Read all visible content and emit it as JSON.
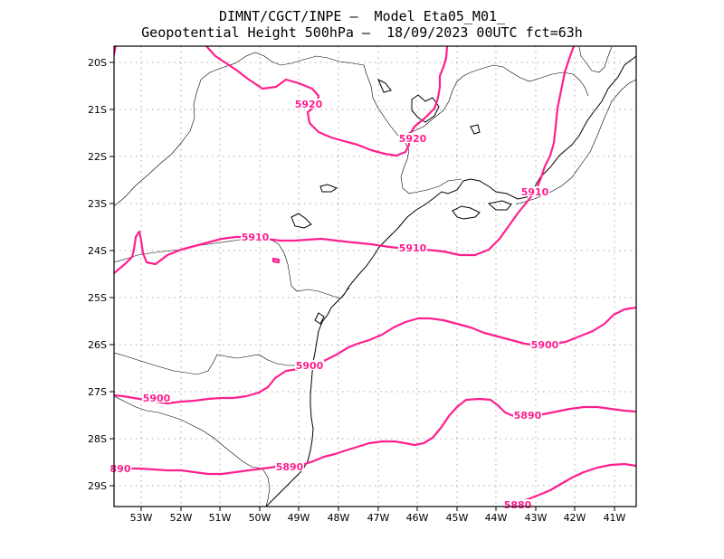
{
  "header": {
    "title_line1": "DIMNT/CGCT/INPE –  Model Eta05_M01_",
    "title_line2": "Geopotential Height 500hPa –  18/09/2023 00UTC fct=63h"
  },
  "axes": {
    "lon_labels": [
      "53W",
      "52W",
      "51W",
      "50W",
      "49W",
      "48W",
      "47W",
      "46W",
      "45W",
      "44W",
      "43W",
      "42W",
      "41W"
    ],
    "lat_labels": [
      "20S",
      "21S",
      "22S",
      "23S",
      "24S",
      "25S",
      "26S",
      "27S",
      "28S",
      "29S"
    ]
  },
  "contours": {
    "line_color": "#ff1f8f",
    "labels": [
      {
        "id": "c5920a",
        "text": "5920"
      },
      {
        "id": "c5920b",
        "text": "5920"
      },
      {
        "id": "c5910a",
        "text": "5910"
      },
      {
        "id": "c5910b",
        "text": "5910"
      },
      {
        "id": "c5910c",
        "text": "5910"
      },
      {
        "id": "c5900a",
        "text": "5900"
      },
      {
        "id": "c5900b",
        "text": "5900"
      },
      {
        "id": "c5900c",
        "text": "5900"
      },
      {
        "id": "c5890a",
        "text": "5890"
      },
      {
        "id": "c5890b",
        "text": "5890"
      },
      {
        "id": "c5890c",
        "text": "890"
      },
      {
        "id": "c5880",
        "text": "5880"
      }
    ]
  }
}
